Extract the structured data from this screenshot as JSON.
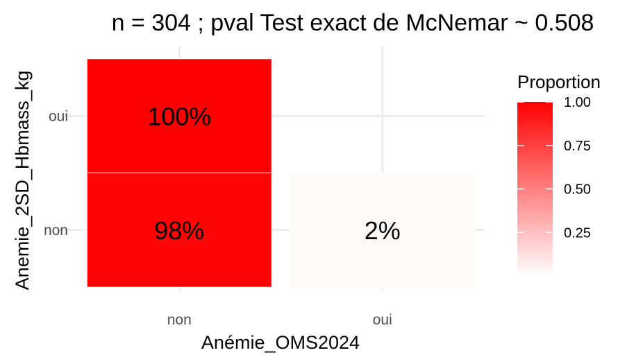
{
  "chart_data": {
    "type": "heatmap",
    "title": "n = 304 ; pval Test exact de McNemar ~ 0.508",
    "xlabel": "Anémie_OMS2024",
    "ylabel": "Anemie_2SD_Hbmass_kg",
    "x_categories": [
      "non",
      "oui"
    ],
    "y_categories": [
      "non",
      "oui"
    ],
    "cells": [
      {
        "x": "non",
        "y": "oui",
        "value": 1.0,
        "label": "100%"
      },
      {
        "x": "non",
        "y": "non",
        "value": 0.98,
        "label": "98%"
      },
      {
        "x": "oui",
        "y": "non",
        "value": 0.02,
        "label": "2%"
      }
    ],
    "legend": {
      "title": "Proportion",
      "ticks": [
        {
          "value": 1.0,
          "label": "1.00"
        },
        {
          "value": 0.75,
          "label": "0.75"
        },
        {
          "value": 0.5,
          "label": "0.50"
        },
        {
          "value": 0.25,
          "label": "0.25"
        }
      ],
      "range": [
        0,
        1
      ],
      "color_low": "#ffffff",
      "color_high": "#ff0000",
      "placement": "right"
    },
    "grid": true
  }
}
